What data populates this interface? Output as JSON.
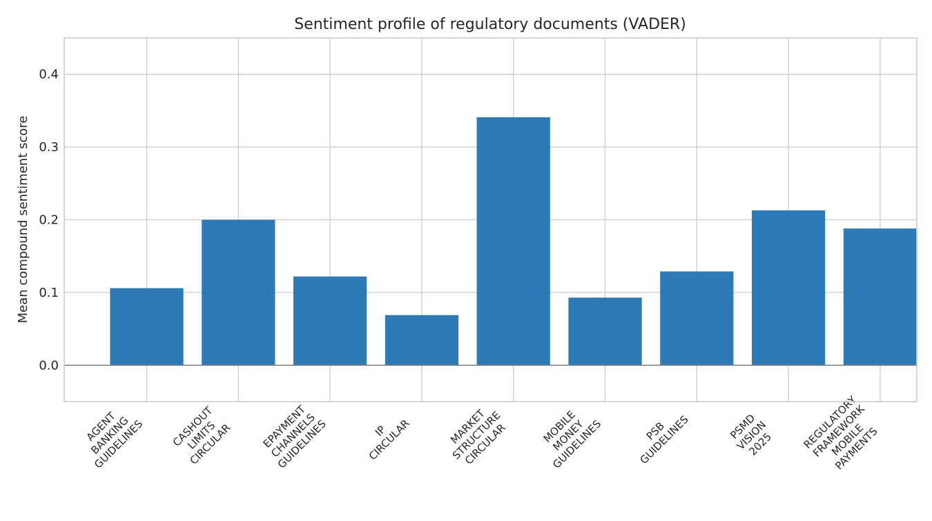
{
  "chart_data": {
    "type": "bar",
    "title": "Sentiment profile of regulatory documents (VADER)",
    "xlabel": "",
    "ylabel": "Mean compound sentiment score",
    "ylim": [
      -0.05,
      0.45
    ],
    "yticks": [
      "0.0",
      "0.1",
      "0.2",
      "0.3",
      "0.4"
    ],
    "categories": [
      "AGENT BANKING GUIDELINES",
      "CASHOUT LIMITS CIRCULAR",
      "EPAYMENT CHANNELS GUIDELINES",
      "IP CIRCULAR",
      "MARKET STRUCTURE CIRCULAR",
      "MOBILE MONEY GUIDELINES",
      "PSB GUIDELINES",
      "PSMD VISION 2025",
      "REGULATORY FRAMEWORK MOBILE PAYMENTS"
    ],
    "category_lines": [
      [
        "AGENT",
        "BANKING",
        "GUIDELINES"
      ],
      [
        "CASHOUT",
        "LIMITS",
        "CIRCULAR"
      ],
      [
        "EPAYMENT",
        "CHANNELS",
        "GUIDELINES"
      ],
      [
        "IP",
        "CIRCULAR"
      ],
      [
        "MARKET",
        "STRUCTURE",
        "CIRCULAR"
      ],
      [
        "MOBILE",
        "MONEY",
        "GUIDELINES"
      ],
      [
        "PSB",
        "GUIDELINES"
      ],
      [
        "PSMD",
        "VISION",
        "2025"
      ],
      [
        "REGULATORY",
        "FRAMEWORK",
        "MOBILE",
        "PAYMENTS"
      ]
    ],
    "values": [
      0.106,
      0.2,
      0.122,
      0.069,
      0.341,
      0.093,
      0.129,
      0.213,
      0.188
    ],
    "grid": true,
    "colors": {
      "bar": "#2e7ab6",
      "grid": "#cccccc",
      "axis": "#cccccc",
      "baseline": "#808080"
    }
  }
}
